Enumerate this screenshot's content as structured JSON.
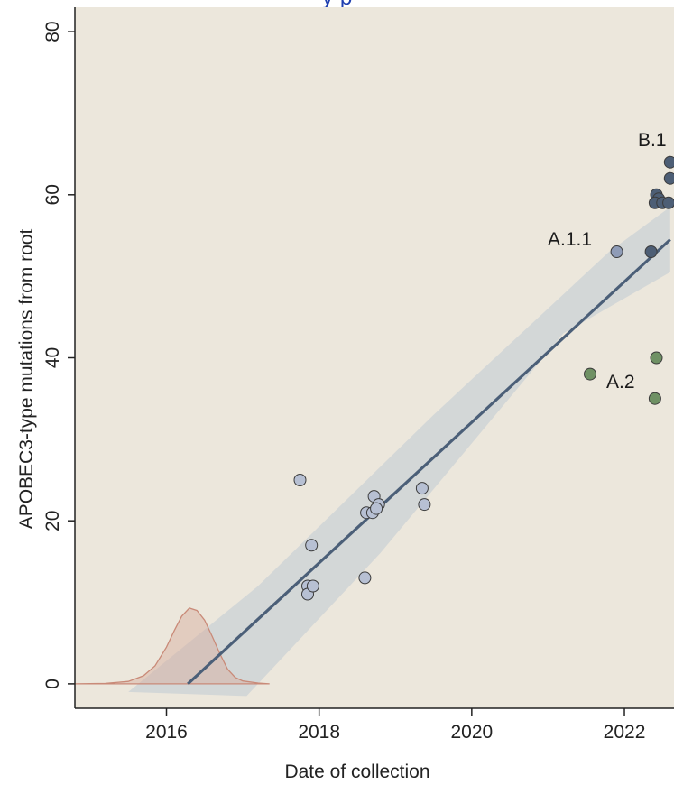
{
  "title_fragment": "y p",
  "chart_data": {
    "type": "scatter",
    "title": "",
    "xlabel": "Date of collection",
    "ylabel": "APOBEC3-type mutations from root",
    "xlim": [
      2014.8,
      2022.65
    ],
    "ylim": [
      -3,
      83
    ],
    "xticks": [
      "2016",
      "2018",
      "2020",
      "2022"
    ],
    "yticks": [
      "0",
      "20",
      "40",
      "60",
      "80"
    ],
    "grid": false,
    "background": "#ece7dc",
    "colors": {
      "lineage_a": "#b7c0d3",
      "lineage_a11": "#8f9cb7",
      "lineage_a2": "#6f9164",
      "lineage_b1": "#4d5e75",
      "regression_line": "#4b5f78",
      "confidence_band": "#cfd3d6",
      "density": "#d8aa9c"
    },
    "annotations": [
      "B.1",
      "A.1.1",
      "A.2"
    ],
    "regression": {
      "start": [
        2016.28,
        0
      ],
      "end": [
        2022.6,
        54.5
      ]
    },
    "confidence_band": {
      "upper": [
        [
          2016.28,
          0
        ],
        [
          2022.6,
          58.5
        ]
      ],
      "lower": [
        [
          2016.28,
          0
        ],
        [
          2022.6,
          50.5
        ]
      ]
    },
    "series": [
      {
        "name": "",
        "color_key": "lineage_a",
        "points": [
          [
            2017.75,
            25
          ],
          [
            2017.9,
            17
          ],
          [
            2017.85,
            12
          ],
          [
            2017.85,
            11
          ],
          [
            2017.92,
            12
          ],
          [
            2018.6,
            13
          ],
          [
            2018.62,
            21
          ],
          [
            2018.7,
            21
          ],
          [
            2018.72,
            23
          ],
          [
            2018.78,
            22
          ],
          [
            2018.75,
            21.5
          ],
          [
            2019.35,
            24
          ],
          [
            2019.38,
            22
          ]
        ]
      },
      {
        "name": "",
        "color_key": "lineage_a11",
        "points": [
          [
            2021.9,
            53
          ]
        ]
      },
      {
        "name": "",
        "color_key": "lineage_a2",
        "points": [
          [
            2021.55,
            38
          ],
          [
            2022.42,
            40
          ],
          [
            2022.4,
            35
          ]
        ]
      },
      {
        "name": "",
        "color_key": "lineage_b1",
        "points": [
          [
            2022.35,
            53
          ],
          [
            2022.6,
            64
          ],
          [
            2022.6,
            62
          ],
          [
            2022.42,
            60
          ],
          [
            2022.45,
            59.5
          ],
          [
            2022.4,
            59
          ],
          [
            2022.5,
            59
          ],
          [
            2022.58,
            59
          ]
        ]
      }
    ],
    "density_curve": [
      [
        2014.8,
        0
      ],
      [
        2015.2,
        0.05
      ],
      [
        2015.5,
        0.3
      ],
      [
        2015.7,
        1
      ],
      [
        2015.85,
        2.2
      ],
      [
        2016.0,
        4.5
      ],
      [
        2016.1,
        6.5
      ],
      [
        2016.2,
        8.3
      ],
      [
        2016.3,
        9.3
      ],
      [
        2016.4,
        9.0
      ],
      [
        2016.5,
        7.8
      ],
      [
        2016.6,
        5.8
      ],
      [
        2016.7,
        3.7
      ],
      [
        2016.8,
        1.8
      ],
      [
        2016.9,
        0.8
      ],
      [
        2017.0,
        0.35
      ],
      [
        2017.2,
        0.1
      ],
      [
        2017.35,
        0
      ]
    ]
  }
}
